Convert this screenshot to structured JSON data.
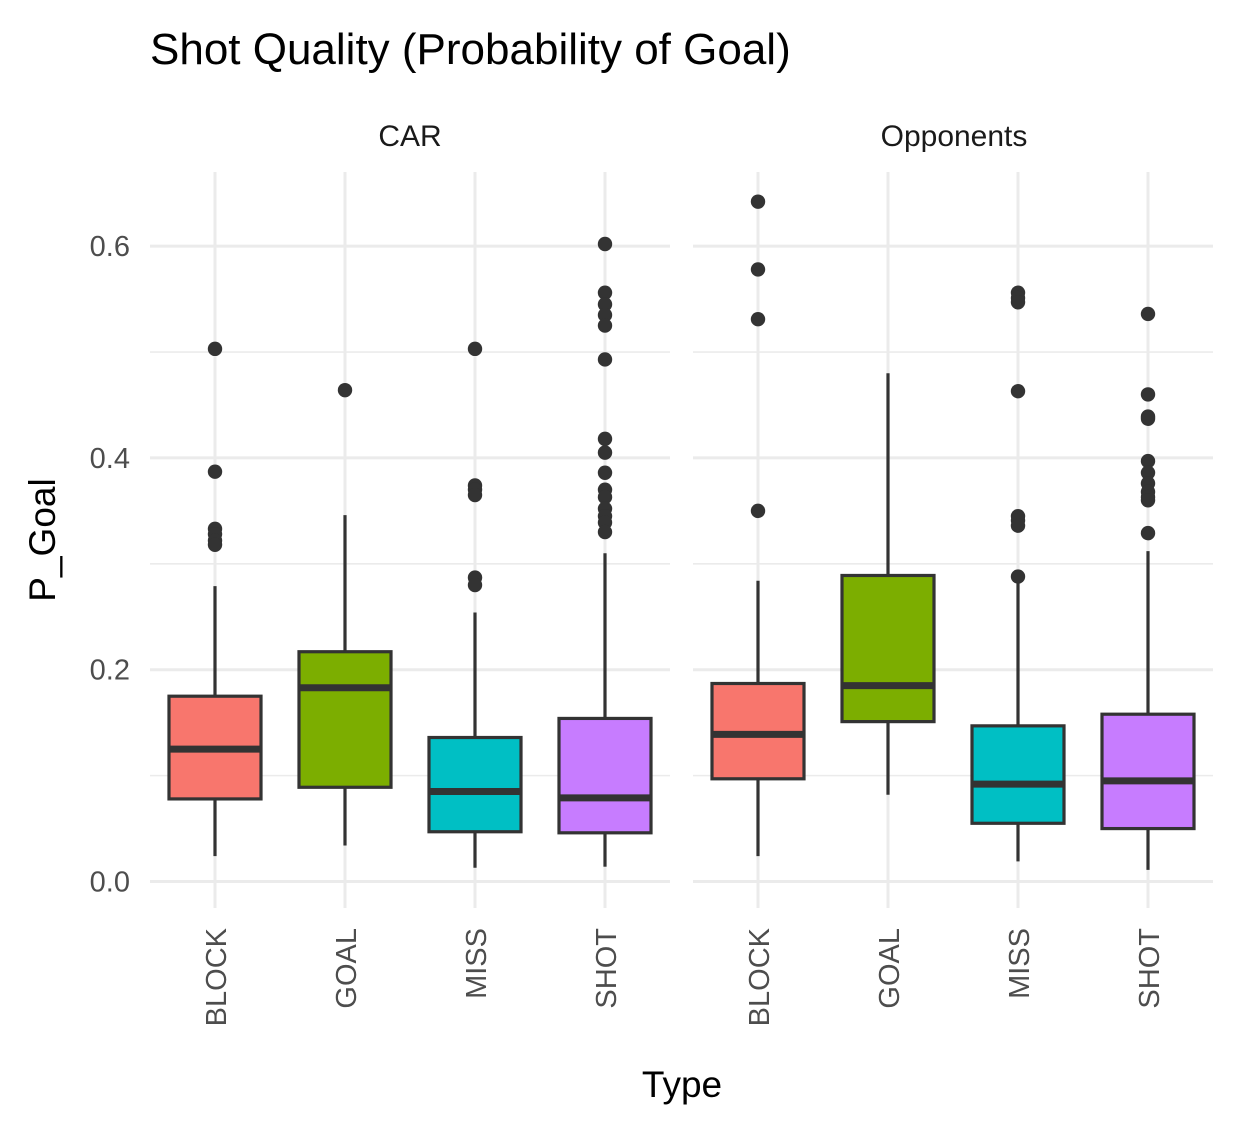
{
  "chart_data": {
    "type": "box",
    "title": "Shot Quality (Probability of Goal)",
    "xlabel": "Type",
    "ylabel": "P_Goal",
    "ylim": [
      -0.025,
      0.67
    ],
    "y_ticks": [
      0.0,
      0.2,
      0.4,
      0.6
    ],
    "y_tick_labels": [
      "0.0",
      "0.2",
      "0.4",
      "0.6"
    ],
    "categories": [
      "BLOCK",
      "GOAL",
      "MISS",
      "SHOT"
    ],
    "grid": true,
    "legend": "none",
    "colors": {
      "BLOCK": "#F8766D",
      "GOAL": "#7CAE00",
      "MISS": "#00BFC4",
      "SHOT": "#C77CFF",
      "outline": "#333333",
      "grid": "#ebebeb"
    },
    "panels": [
      {
        "name": "CAR",
        "boxes": [
          {
            "category": "BLOCK",
            "whisker_low": 0.024,
            "q1": 0.078,
            "median": 0.125,
            "q3": 0.175,
            "whisker_high": 0.279,
            "outliers": [
              0.503,
              0.387,
              0.333,
              0.328,
              0.322,
              0.318
            ]
          },
          {
            "category": "GOAL",
            "whisker_low": 0.034,
            "q1": 0.089,
            "median": 0.183,
            "q3": 0.217,
            "whisker_high": 0.346,
            "outliers": [
              0.464
            ]
          },
          {
            "category": "MISS",
            "whisker_low": 0.013,
            "q1": 0.047,
            "median": 0.085,
            "q3": 0.136,
            "whisker_high": 0.254,
            "outliers": [
              0.503,
              0.374,
              0.37,
              0.365,
              0.287,
              0.28
            ]
          },
          {
            "category": "SHOT",
            "whisker_low": 0.014,
            "q1": 0.046,
            "median": 0.079,
            "q3": 0.154,
            "whisker_high": 0.31,
            "outliers": [
              0.602,
              0.556,
              0.545,
              0.535,
              0.525,
              0.493,
              0.418,
              0.405,
              0.386,
              0.37,
              0.363,
              0.352,
              0.345,
              0.339,
              0.33
            ]
          }
        ]
      },
      {
        "name": "Opponents",
        "boxes": [
          {
            "category": "BLOCK",
            "whisker_low": 0.024,
            "q1": 0.097,
            "median": 0.139,
            "q3": 0.187,
            "whisker_high": 0.284,
            "outliers": [
              0.642,
              0.578,
              0.531,
              0.35
            ]
          },
          {
            "category": "GOAL",
            "whisker_low": 0.082,
            "q1": 0.151,
            "median": 0.185,
            "q3": 0.289,
            "whisker_high": 0.48,
            "outliers": []
          },
          {
            "category": "MISS",
            "whisker_low": 0.019,
            "q1": 0.055,
            "median": 0.092,
            "q3": 0.147,
            "whisker_high": 0.283,
            "outliers": [
              0.556,
              0.551,
              0.547,
              0.463,
              0.345,
              0.341,
              0.336,
              0.288
            ]
          },
          {
            "category": "SHOT",
            "whisker_low": 0.011,
            "q1": 0.05,
            "median": 0.095,
            "q3": 0.158,
            "whisker_high": 0.312,
            "outliers": [
              0.536,
              0.46,
              0.439,
              0.437,
              0.397,
              0.386,
              0.376,
              0.368,
              0.363,
              0.36,
              0.329
            ]
          }
        ]
      }
    ]
  }
}
